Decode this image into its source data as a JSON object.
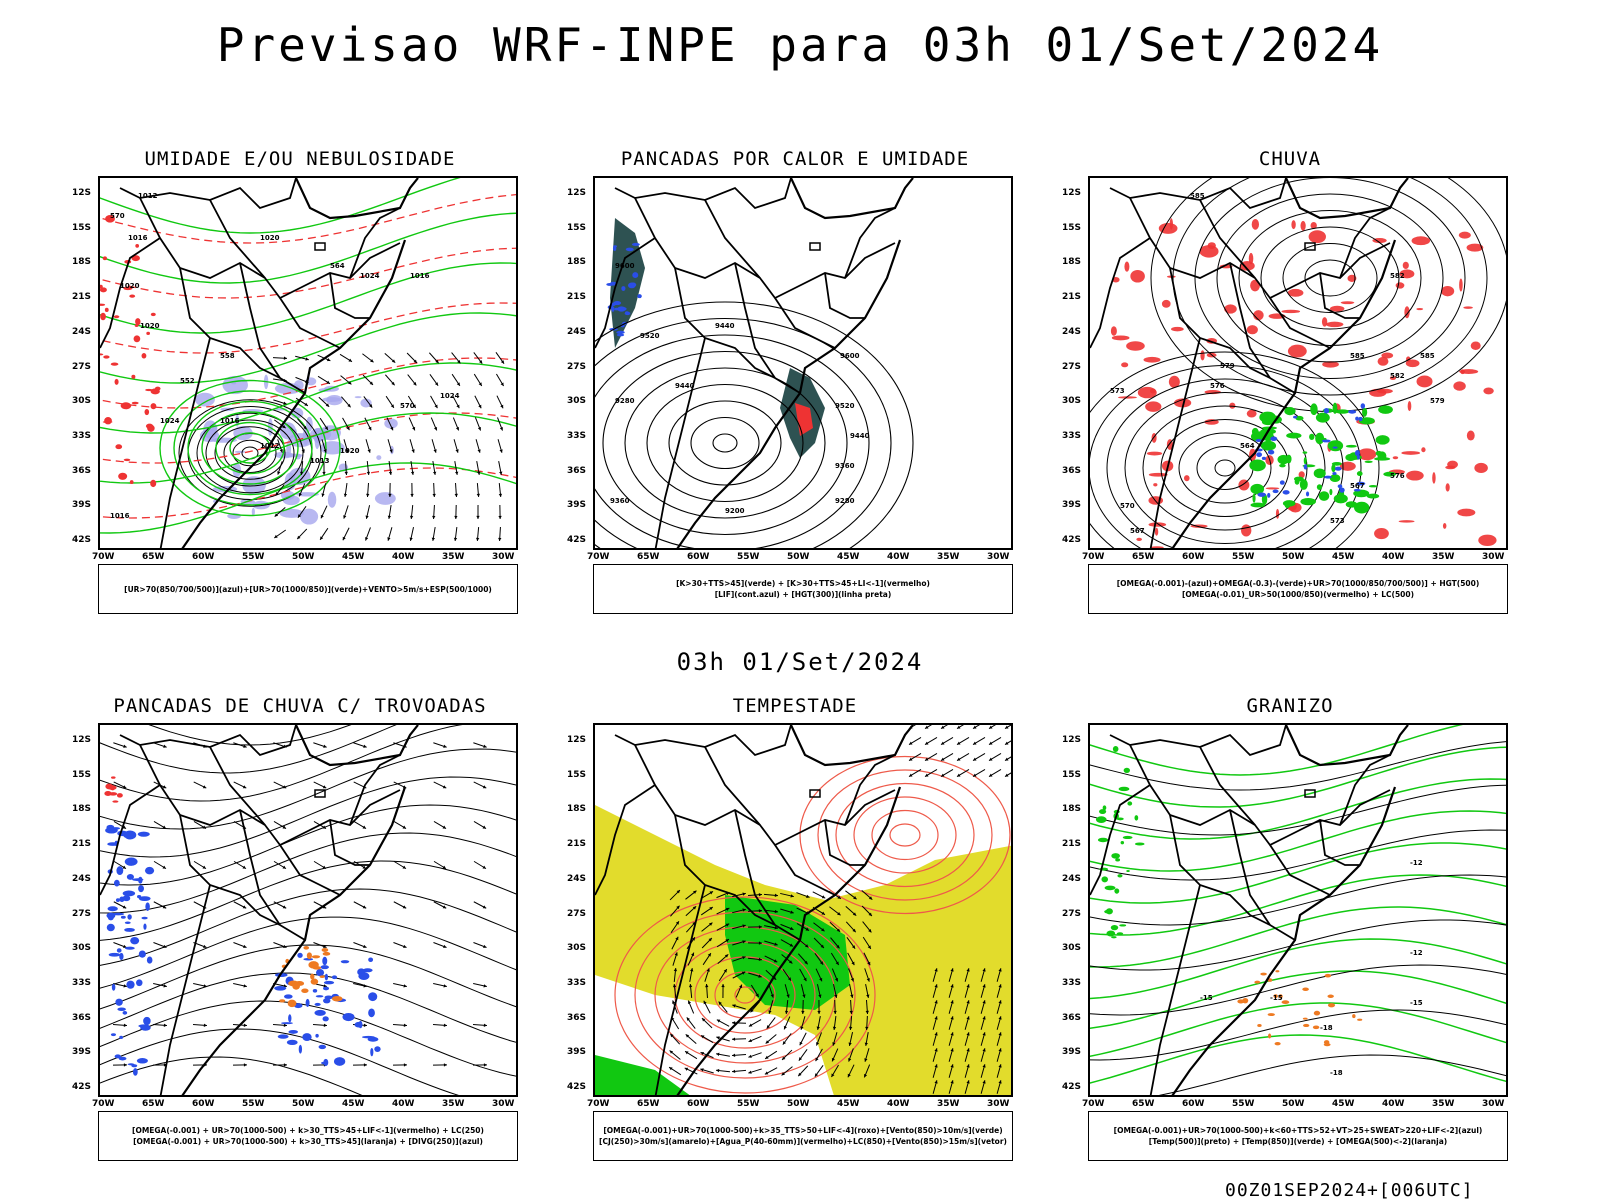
{
  "title": "Previsao WRF-INPE  para 03h 01/Set/2024",
  "middle_title": "03h 01/Set/2024",
  "footer": "00Z01SEP2024+[006UTC]",
  "lat_labels": [
    "12S",
    "15S",
    "18S",
    "21S",
    "24S",
    "27S",
    "30S",
    "33S",
    "36S",
    "39S",
    "42S"
  ],
  "lon_labels": [
    "70W",
    "65W",
    "60W",
    "55W",
    "50W",
    "45W",
    "40W",
    "35W",
    "30W"
  ],
  "panels": [
    {
      "title": "UMIDADE E/OU NEBULOSIDADE",
      "legend": [
        "[UR>70(850/700/500)](azul)+[UR>70(1000/850)](verde)+VENTO>5m/s+ESP(500/1000)"
      ],
      "contour_labels": [
        "1012",
        "1016",
        "1020",
        "1024",
        "1020",
        "1016",
        "1020",
        "1024",
        "1016",
        "1012",
        "1020",
        "1013",
        "1024",
        "1016",
        "570",
        "570",
        "564",
        "558",
        "552",
        "570"
      ]
    },
    {
      "title": "PANCADAS POR CALOR E UMIDADE",
      "legend": [
        "[K>30+TTS>45](verde)  +  [K>30+TTS>45+LI<-1](vermelho)",
        "[LIF](cont.azul)  +  [HGT(300)](linha preta)"
      ],
      "contour_labels": [
        "9600",
        "9520",
        "9440",
        "9600",
        "9520",
        "9440",
        "9360",
        "9280",
        "9200",
        "9360",
        "9280",
        "9440"
      ]
    },
    {
      "title": "CHUVA",
      "legend": [
        "[OMEGA(-0.001)-(azul)+OMEGA(-0.3)-(verde)+UR>70(1000/850/700/500)]  +  HGT(500)",
        "[OMEGA(-0.01)_UR>50(1000/850)(vermelho)  +  LC(500)"
      ],
      "contour_labels": [
        "585",
        "585",
        "582",
        "579",
        "576",
        "573",
        "570",
        "567",
        "564",
        "582",
        "585",
        "579",
        "576",
        "573",
        "567"
      ]
    },
    {
      "title": "PANCADAS DE CHUVA C/ TROVOADAS",
      "legend": [
        "[OMEGA(-0.001)  +  UR>70(1000-500)  +  k>30_TTS>45+LIF<-1](vermelho)  +  LC(250)",
        "[OMEGA(-0.001)  +  UR>70(1000-500)  +  k>30_TTS>45](laranja)  +  [DIVG(250)](azul)"
      ],
      "contour_labels": []
    },
    {
      "title": "TEMPESTADE",
      "legend": [
        "[OMEGA(-0.001)+UR>70(1000-500)+k>35_TTS>50+LIF<-4](roxo)+[Vento(850)>10m/s](verde)",
        "[CJ(250)>30m/s](amarelo)+[Agua_P(40-60mm)](vermelho)+LC(850)+[Vento(850)>15m/s](vetor)"
      ],
      "contour_labels": []
    },
    {
      "title": "GRANIZO",
      "legend": [
        "[OMEGA(-0.001)+UR>70(1000-500)+k<60+TTS>52+VT>25+SWEAT>220+LIF<-2](azul)",
        "[Temp(500)](preto)  +  [Temp(850)](verde)  +  [OMEGA(500)<-2](laranja)"
      ],
      "contour_labels": [
        "-12",
        "-15",
        "-15",
        "-18",
        "-18",
        "-15",
        "-12"
      ]
    }
  ],
  "colors": {
    "contour": "#000000",
    "green": "#11c811",
    "red": "#ee3333",
    "blue": "#2a4ee8",
    "lavender": "#a6a6ee",
    "yellow": "#e2dc2c",
    "darkteal": "#2e5252",
    "orange": "#ee7a22",
    "salmon": "#ee5a4a"
  }
}
